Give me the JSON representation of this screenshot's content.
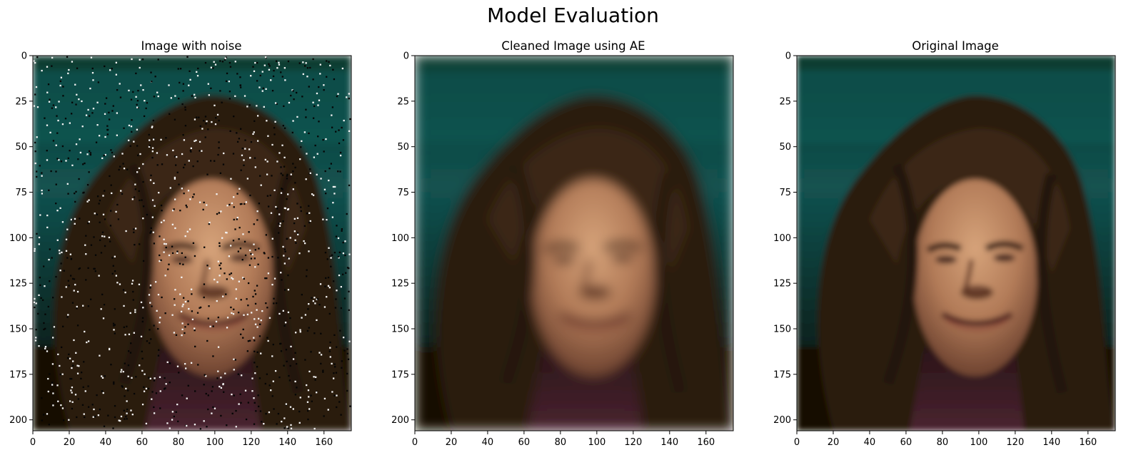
{
  "figure": {
    "suptitle": "Model Evaluation",
    "panels": [
      {
        "title": "Image with noise",
        "variant": "noisy"
      },
      {
        "title": "Cleaned Image using AE",
        "variant": "clean"
      },
      {
        "title": "Original Image",
        "variant": "sharp"
      }
    ],
    "x_ticks": [
      "0",
      "20",
      "40",
      "60",
      "80",
      "100",
      "120",
      "140",
      "160"
    ],
    "y_ticks": [
      "0",
      "25",
      "50",
      "75",
      "100",
      "125",
      "150",
      "175",
      "200"
    ],
    "x_range": [
      0,
      175
    ],
    "y_range": [
      0,
      206
    ]
  },
  "colors": {
    "background_teal": "#0f4a46",
    "hair_brown": "#2e1e0f",
    "skin": "#b98563",
    "shirt": "#3a2026"
  }
}
